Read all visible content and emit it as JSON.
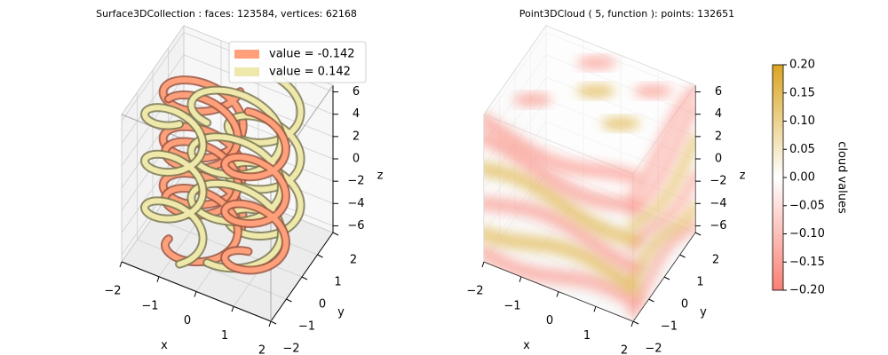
{
  "chart_data": [
    {
      "type": "surface3d",
      "title": "Surface3DCollection :  faces: 123584,  vertices: 62168",
      "xlabel": "x",
      "ylabel": "y",
      "zlabel": "z",
      "xlim": [
        -2,
        2
      ],
      "ylim": [
        -2,
        2
      ],
      "zlim": [
        -6.6,
        6.6
      ],
      "xticks": [
        {
          "value": -2,
          "label": "−2"
        },
        {
          "value": -1,
          "label": "−1"
        },
        0,
        1,
        2
      ],
      "yticks": [
        {
          "value": -2,
          "label": "−2"
        },
        {
          "value": -1,
          "label": "−1"
        },
        0,
        1,
        2
      ],
      "zticks": [
        {
          "value": -6,
          "label": "−6"
        },
        {
          "value": -4,
          "label": "−4"
        },
        {
          "value": -2,
          "label": "−2"
        },
        0,
        2,
        4,
        6
      ],
      "grid": true,
      "legend": "upper right",
      "series": [
        {
          "name": "value = -0.142",
          "color": "#ffa07a"
        },
        {
          "name": "value = 0.142",
          "color": "#eee8aa"
        }
      ]
    },
    {
      "type": "scatter3d",
      "title": "Point3DCloud ( 5, function ):  points: 132651",
      "xlabel": "x",
      "ylabel": "y",
      "zlabel": "z",
      "xlim": [
        -2,
        2
      ],
      "ylim": [
        -2,
        2
      ],
      "zlim": [
        -6.6,
        6.6
      ],
      "xticks": [
        {
          "value": -2,
          "label": "−2"
        },
        {
          "value": -1,
          "label": "−1"
        },
        0,
        1,
        2
      ],
      "yticks": [
        {
          "value": -2,
          "label": "−2"
        },
        {
          "value": -1,
          "label": "−1"
        },
        0,
        1,
        2
      ],
      "zticks": [
        {
          "value": -6,
          "label": "−6"
        },
        {
          "value": -4,
          "label": "−4"
        },
        {
          "value": -2,
          "label": "−2"
        },
        0,
        2,
        4,
        6
      ],
      "grid": true,
      "colorbar": {
        "label": "cloud values",
        "lim": [
          -0.2,
          0.2
        ],
        "colors": [
          "#fa8072",
          "#ffffff",
          "#daa520"
        ],
        "ticks": [
          {
            "value": 0.2,
            "label": "0.20"
          },
          {
            "value": 0.15,
            "label": "0.15"
          },
          {
            "value": 0.1,
            "label": "0.10"
          },
          {
            "value": 0.05,
            "label": "0.05"
          },
          {
            "value": 0,
            "label": "0.00"
          },
          {
            "value": -0.05,
            "label": "−0.05"
          },
          {
            "value": -0.1,
            "label": "−0.10"
          },
          {
            "value": -0.15,
            "label": "−0.15"
          },
          {
            "value": -0.2,
            "label": "−0.20"
          }
        ]
      }
    }
  ]
}
